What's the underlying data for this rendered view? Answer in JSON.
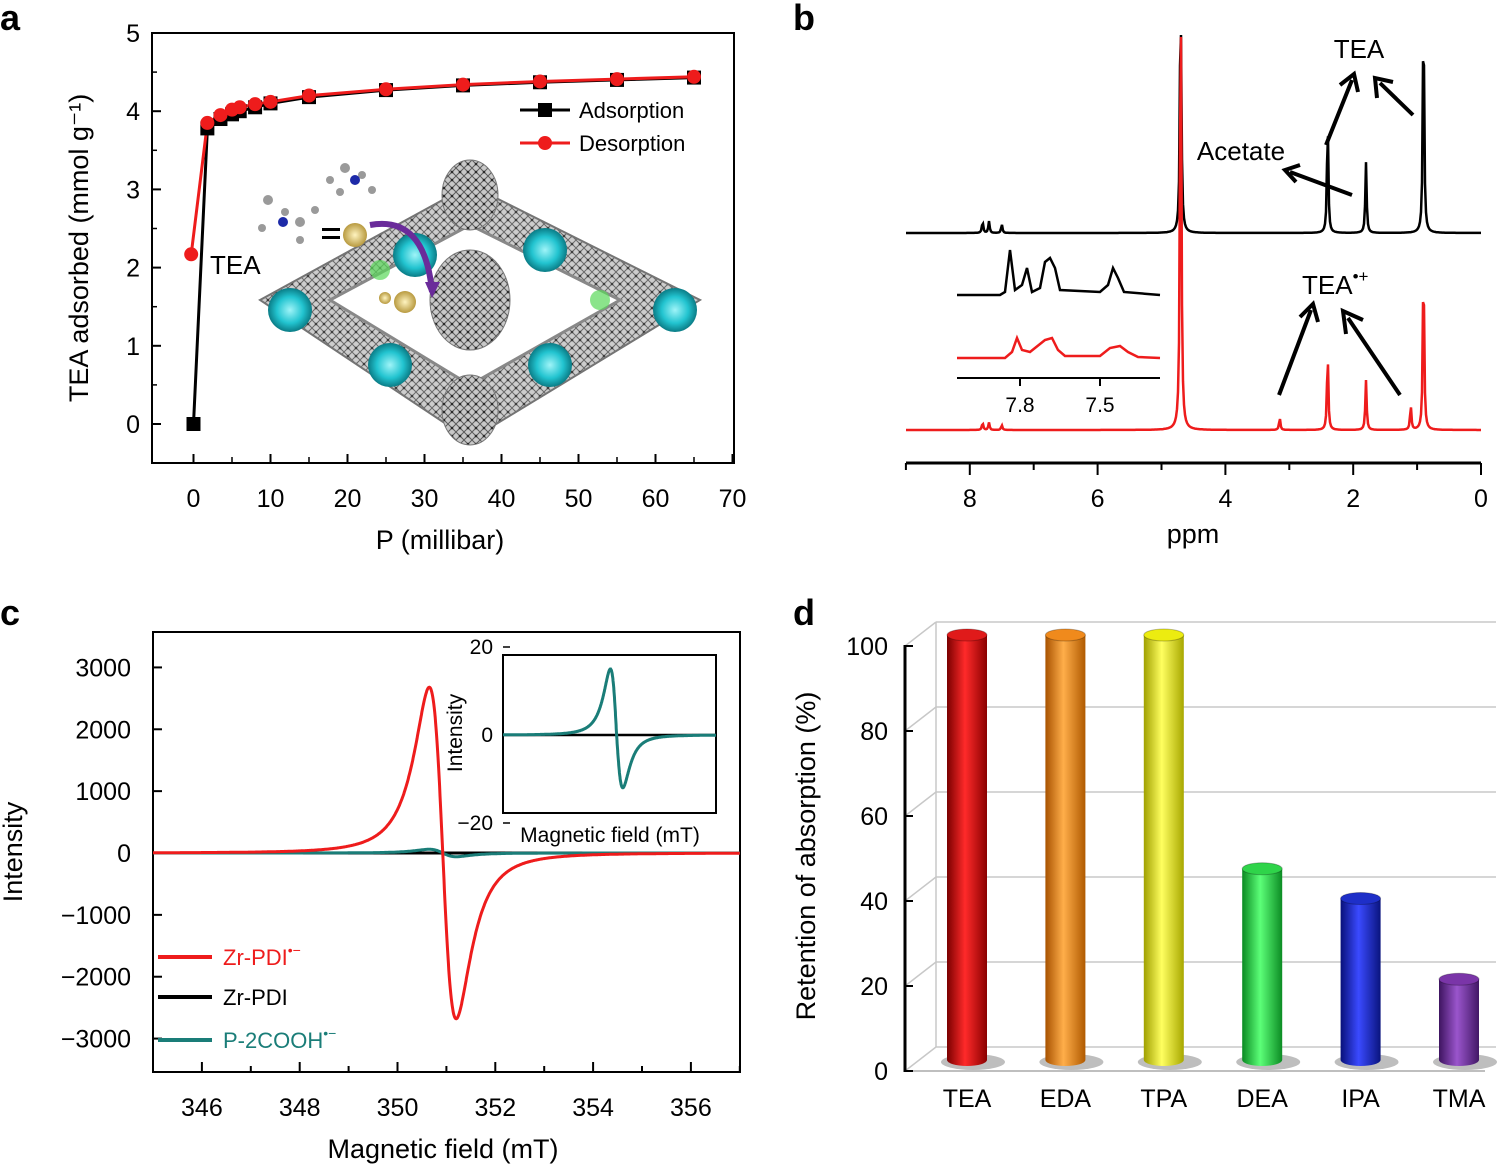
{
  "panels": {
    "a": "a",
    "b": "b",
    "c": "c",
    "d": "d"
  },
  "colors": {
    "red": "#ee1c1c",
    "black": "#000000",
    "teal": "#1a7d78",
    "tea": "#e01a1a",
    "eda": "#f08a1c",
    "tpa": "#ecec10",
    "dea": "#2fd44a",
    "ipa": "#1e2fc8",
    "tma": "#7a35a8"
  },
  "chart_data": [
    {
      "id": "a",
      "type": "line",
      "xlabel": "P (millibar)",
      "ylabel": "TEA adsorbed (mmol g⁻¹)",
      "xlim": [
        -5,
        70
      ],
      "ylim": [
        -0.5,
        5
      ],
      "xticks": [
        "0",
        "10",
        "20",
        "30",
        "40",
        "50",
        "60",
        "70"
      ],
      "yticks": [
        "0",
        "1",
        "2",
        "3",
        "4",
        "5"
      ],
      "annotation": "TEA",
      "series": [
        {
          "name": "Adsorption",
          "x": [
            0,
            1.8,
            3.5,
            5,
            6,
            8,
            10,
            15,
            25,
            35,
            45,
            55,
            65
          ],
          "y": [
            0,
            3.78,
            3.9,
            3.96,
            4.0,
            4.05,
            4.1,
            4.18,
            4.27,
            4.33,
            4.37,
            4.4,
            4.43
          ]
        },
        {
          "name": "Desorption",
          "x": [
            -0.3,
            1.8,
            3.5,
            5,
            6,
            8,
            10,
            15,
            25,
            35,
            45,
            55,
            65
          ],
          "y": [
            2.17,
            3.85,
            3.95,
            4.02,
            4.05,
            4.09,
            4.12,
            4.2,
            4.28,
            4.34,
            4.38,
            4.41,
            4.44
          ]
        }
      ]
    },
    {
      "id": "b",
      "type": "line",
      "xlabel": "ppm",
      "xlim": [
        9,
        0
      ],
      "xticks": [
        "8",
        "6",
        "4",
        "2",
        "0"
      ],
      "annotations": {
        "tea": "TEA",
        "acetate": "Acetate",
        "tea_radical": "TEA",
        "tea_radical_sup": "•+"
      },
      "inset_xticks": [
        "7.8",
        "7.5"
      ],
      "series": [
        {
          "name": "TEA spectrum",
          "peaks_ppm": [
            7.8,
            7.7,
            7.5,
            4.7,
            2.4,
            1.8,
            0.9
          ],
          "peaks_height": [
            0.04,
            0.04,
            0.03,
            1.0,
            0.4,
            0.24,
            0.82
          ]
        },
        {
          "name": "TEA radical spectrum",
          "peaks_ppm": [
            7.8,
            7.7,
            7.5,
            4.7,
            3.15,
            2.4,
            1.8,
            1.1,
            0.9
          ],
          "peaks_height": [
            0.03,
            0.03,
            0.02,
            2.0,
            0.05,
            0.32,
            0.2,
            0.1,
            0.72
          ]
        }
      ]
    },
    {
      "id": "c",
      "type": "line",
      "xlabel": "Magnetic field (mT)",
      "ylabel": "Intensity",
      "xlim": [
        345,
        357
      ],
      "ylim": [
        -3500,
        3500
      ],
      "xticks": [
        "346",
        "348",
        "350",
        "352",
        "354",
        "356"
      ],
      "yticks": [
        "3000",
        "2000",
        "1000",
        "0",
        "−1000",
        "−2000",
        "−3000"
      ],
      "legend": [
        {
          "name": "Zr-PDI",
          "sup": "•−"
        },
        {
          "name": "Zr-PDI",
          "sup": ""
        },
        {
          "name": "P-2COOH",
          "sup": "•−"
        }
      ],
      "peak_max": {
        "x": 350.65,
        "y": 2680
      },
      "peak_min": {
        "x": 351.2,
        "y": -2700
      },
      "inset": {
        "xlabel": "Magnetic field (mT)",
        "ylabel": "Intensity",
        "yticks": [
          "20",
          "0",
          "−20"
        ],
        "ylim": [
          -20,
          20
        ],
        "peak_max": 15,
        "peak_min": -12
      }
    },
    {
      "id": "d",
      "type": "bar",
      "ylabel": "Retention of absorption (%)",
      "ylim": [
        0,
        100
      ],
      "yticks": [
        "0",
        "20",
        "40",
        "60",
        "80",
        "100"
      ],
      "categories": [
        "TEA",
        "EDA",
        "TPA",
        "DEA",
        "IPA",
        "TMA"
      ],
      "values": [
        100,
        100,
        100,
        45,
        38,
        19
      ]
    }
  ]
}
